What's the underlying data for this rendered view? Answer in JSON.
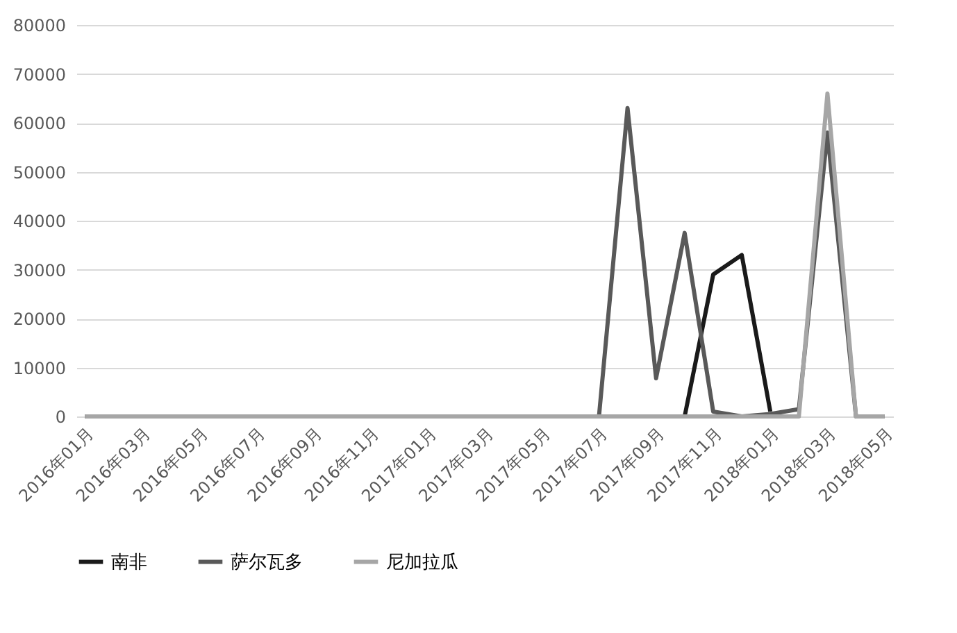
{
  "chart_data": {
    "type": "line",
    "categories": [
      "2016年01月",
      null,
      "2016年03月",
      null,
      "2016年05月",
      null,
      "2016年07月",
      null,
      "2016年09月",
      null,
      "2016年11月",
      null,
      "2017年01月",
      null,
      "2017年03月",
      null,
      "2017年05月",
      null,
      "2017年07月",
      null,
      "2017年09月",
      null,
      "2017年11月",
      null,
      "2018年01月",
      null,
      "2018年03月",
      null,
      "2018年05月"
    ],
    "series": [
      {
        "name": "南非",
        "color": "#1a1a1a",
        "values": [
          null,
          null,
          null,
          null,
          null,
          null,
          null,
          null,
          null,
          null,
          null,
          null,
          null,
          null,
          null,
          null,
          null,
          null,
          null,
          null,
          null,
          0,
          29000,
          33000,
          1000,
          null,
          null,
          null,
          null
        ]
      },
      {
        "name": "萨尔瓦多",
        "color": "#595959",
        "values": [
          0,
          0,
          0,
          0,
          0,
          0,
          0,
          0,
          0,
          0,
          0,
          0,
          0,
          0,
          0,
          0,
          0,
          0,
          0,
          63000,
          7800,
          37500,
          1000,
          0,
          500,
          1500,
          58000,
          0,
          0
        ]
      },
      {
        "name": "尼加拉瓜",
        "color": "#a6a6a6",
        "values": [
          0,
          0,
          0,
          0,
          0,
          0,
          0,
          0,
          0,
          0,
          0,
          0,
          0,
          0,
          0,
          0,
          0,
          0,
          0,
          0,
          0,
          0,
          0,
          0,
          0,
          0,
          66000,
          0,
          0
        ]
      }
    ],
    "ylim": [
      0,
      80000
    ],
    "yticks": [
      0,
      10000,
      20000,
      30000,
      40000,
      50000,
      60000,
      70000,
      80000
    ],
    "grid": "y",
    "legend": "bottom"
  }
}
